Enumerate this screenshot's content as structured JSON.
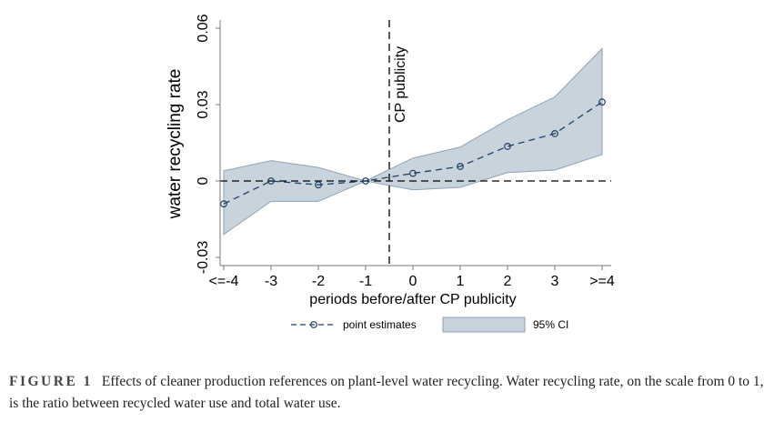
{
  "chart_data": {
    "type": "line",
    "xlabel": "periods before/after CP publicity",
    "ylabel": "water recycling rate",
    "categories": [
      "<=-4",
      "-3",
      "-2",
      "-1",
      "0",
      "1",
      "2",
      "3",
      ">=4"
    ],
    "x": [
      -4,
      -3,
      -2,
      -1,
      0,
      1,
      2,
      3,
      4
    ],
    "yticks": [
      -0.03,
      0,
      0.03,
      0.06
    ],
    "ytick_labels": [
      "-0.03",
      "0",
      "0.03",
      "0.06"
    ],
    "ylim": [
      -0.033,
      0.063
    ],
    "xlim": [
      -4.1,
      4.2
    ],
    "series": [
      {
        "name": "point estimates",
        "values": [
          -0.009,
          0,
          -0.0015,
          0,
          0.003,
          0.0057,
          0.0136,
          0.0186,
          0.031
        ]
      }
    ],
    "ci": {
      "name": "95% CI",
      "upper": [
        0.004,
        0.008,
        0.0053,
        0,
        0.009,
        0.0133,
        0.024,
        0.033,
        0.052
      ],
      "lower": [
        -0.021,
        -0.008,
        -0.008,
        0,
        -0.0035,
        -0.0025,
        0.0033,
        0.0043,
        0.0104
      ]
    },
    "vline": {
      "x": -0.5,
      "label": "CP publicity"
    },
    "hline": {
      "y": 0
    },
    "legend_placement": "bottom",
    "grid": false,
    "colors": {
      "line": "#1f3f66",
      "ci_fill": "#c9d3dc",
      "ci_edge": "#8fa2b4"
    }
  },
  "caption": {
    "label": "FIGURE 1",
    "text": "Effects of cleaner production references on plant-level water recycling. Water recycling rate, on the scale from 0 to 1, is the ratio between recycled water use and total water use."
  }
}
